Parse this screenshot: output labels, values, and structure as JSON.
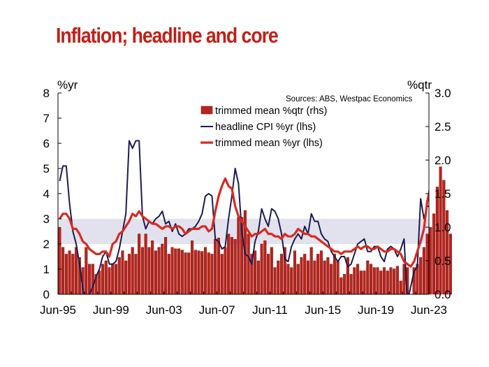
{
  "title": "Inflation; headline and core",
  "colors": {
    "title": "#c0211a",
    "bar_fill": "#b8241c",
    "bar_stroke": "#7a0f0c",
    "headline_line": "#1c1c4e",
    "trimmed_line": "#d92a1f",
    "band": "#e2e2ee"
  },
  "chart_data": {
    "type": "bar",
    "title": "Inflation; headline and core",
    "source": "Sources: ABS, Westpac Economics",
    "ylabel_left": "%yr",
    "ylabel_right": "%qtr",
    "xlim": [
      "Jun-95",
      "Jun-23"
    ],
    "ylim_left": [
      0,
      8
    ],
    "ylim_right": [
      0,
      3
    ],
    "yticks_left": [
      "0",
      "1",
      "2",
      "3",
      "4",
      "5",
      "6",
      "7",
      "8"
    ],
    "yticks_right": [
      "0.0",
      "0.5",
      "1.0",
      "1.5",
      "2.0",
      "2.5",
      "3.0"
    ],
    "xticks": [
      "Jun-95",
      "Jun-99",
      "Jun-03",
      "Jun-07",
      "Jun-11",
      "Jun-15",
      "Jun-19",
      "Jun-23"
    ],
    "target_band_lhs": [
      2,
      3
    ],
    "grid": false,
    "legend_position": "top-center",
    "series": [
      {
        "name": "trimmed mean %qtr (rhs)",
        "type": "bar",
        "axis": "right",
        "x_start": "Jun-95",
        "frequency": "quarterly",
        "values": [
          1.0,
          0.7,
          0.6,
          0.65,
          0.6,
          0.7,
          0.55,
          0.4,
          0.7,
          0.45,
          0.45,
          0.3,
          0.35,
          0.45,
          0.5,
          0.4,
          0.45,
          0.45,
          0.55,
          0.65,
          0.5,
          0.6,
          0.7,
          0.6,
          0.9,
          0.7,
          0.9,
          0.7,
          0.8,
          0.65,
          0.7,
          0.75,
          0.85,
          0.6,
          0.7,
          0.68,
          0.68,
          0.66,
          0.62,
          0.62,
          0.8,
          0.66,
          0.65,
          0.64,
          0.7,
          0.62,
          0.6,
          0.82,
          0.84,
          0.6,
          0.7,
          0.9,
          0.85,
          0.82,
          1.15,
          1.15,
          1.25,
          0.9,
          0.6,
          0.65,
          0.5,
          0.75,
          0.8,
          0.6,
          0.7,
          0.4,
          0.5,
          0.6,
          0.7,
          0.45,
          0.4,
          0.65,
          0.45,
          0.55,
          0.6,
          0.5,
          0.7,
          0.5,
          0.6,
          0.65,
          0.5,
          0.55,
          0.45,
          0.6,
          0.5,
          0.25,
          0.3,
          0.55,
          0.3,
          0.4,
          0.45,
          0.35,
          0.35,
          0.5,
          0.45,
          0.4,
          0.4,
          0.35,
          0.4,
          0.35,
          0.4,
          0.38,
          0.42,
          0.2,
          0.45,
          0.4,
          0.0,
          0.4,
          0.45,
          0.55,
          0.7,
          0.9,
          1.0,
          1.2,
          1.6,
          1.9,
          1.7,
          1.25,
          0.9
        ]
      },
      {
        "name": "headline CPI %yr (lhs)",
        "type": "line",
        "axis": "left",
        "x_start": "Jun-95",
        "frequency": "quarterly",
        "values": [
          4.5,
          5.1,
          5.1,
          3.6,
          2.5,
          2.0,
          1.2,
          0.2,
          -0.2,
          0.0,
          0.3,
          0.7,
          1.0,
          1.5,
          1.7,
          1.2,
          1.2,
          1.3,
          1.8,
          2.5,
          3.2,
          6.1,
          5.8,
          6.1,
          6.1,
          3.1,
          2.6,
          2.9,
          2.8,
          3.0,
          3.1,
          3.3,
          2.8,
          2.9,
          2.5,
          2.8,
          2.4,
          2.3,
          2.4,
          2.6,
          2.6,
          2.7,
          2.9,
          3.2,
          3.9,
          4.0,
          3.9,
          2.2,
          2.1,
          1.8,
          1.9,
          3.0,
          3.9,
          5.0,
          4.4,
          2.5,
          1.6,
          1.5,
          1.2,
          2.1,
          2.5,
          3.4,
          3.0,
          2.7,
          3.4,
          3.3,
          3.0,
          2.4,
          1.4,
          1.3,
          1.9,
          2.2,
          2.4,
          2.2,
          2.7,
          2.4,
          3.2,
          2.9,
          2.9,
          2.4,
          2.2,
          2.1,
          1.7,
          1.5,
          1.3,
          1.5,
          1.5,
          1.1,
          1.2,
          1.6,
          2.0,
          2.1,
          2.2,
          1.7,
          1.7,
          1.9,
          1.9,
          1.5,
          1.3,
          1.8,
          1.9,
          1.8,
          1.5,
          1.8,
          2.2,
          -0.3,
          0.3,
          0.9,
          1.1,
          3.8,
          3.0,
          3.5,
          3.5,
          5.1,
          6.1,
          7.3,
          7.8,
          7.0,
          6.0
        ]
      },
      {
        "name": "trimmed mean %yr (lhs)",
        "type": "line",
        "axis": "left",
        "x_start": "Jun-95",
        "frequency": "quarterly",
        "values": [
          3.0,
          3.2,
          3.2,
          3.0,
          2.6,
          2.6,
          2.4,
          2.1,
          2.0,
          1.8,
          1.7,
          1.6,
          1.6,
          1.7,
          1.7,
          1.5,
          2.0,
          2.1,
          2.4,
          2.5,
          2.7,
          2.9,
          3.2,
          3.1,
          3.3,
          3.1,
          3.0,
          2.9,
          2.8,
          2.8,
          2.7,
          2.6,
          2.7,
          2.7,
          2.6,
          2.7,
          2.7,
          2.6,
          2.4,
          2.5,
          2.6,
          2.6,
          2.6,
          2.7,
          2.7,
          2.5,
          2.6,
          3.3,
          3.9,
          4.3,
          4.6,
          4.3,
          4.2,
          3.5,
          3.1,
          2.9,
          2.7,
          2.5,
          2.3,
          2.4,
          2.4,
          2.5,
          2.6,
          2.4,
          2.4,
          2.3,
          2.3,
          2.2,
          2.4,
          2.3,
          2.3,
          2.4,
          2.6,
          2.5,
          2.4,
          2.4,
          2.3,
          2.3,
          2.2,
          2.1,
          2.0,
          1.9,
          1.8,
          1.7,
          1.7,
          1.6,
          1.7,
          1.7,
          1.7,
          1.8,
          1.9,
          1.8,
          1.9,
          1.9,
          1.8,
          1.8,
          1.9,
          1.8,
          1.7,
          1.7,
          1.8,
          1.8,
          1.7,
          1.6,
          1.3,
          1.2,
          1.1,
          1.3,
          1.7,
          2.1,
          2.6,
          3.7,
          4.3,
          5.1,
          6.1,
          6.9,
          6.6,
          6.5,
          5.9
        ]
      }
    ]
  }
}
